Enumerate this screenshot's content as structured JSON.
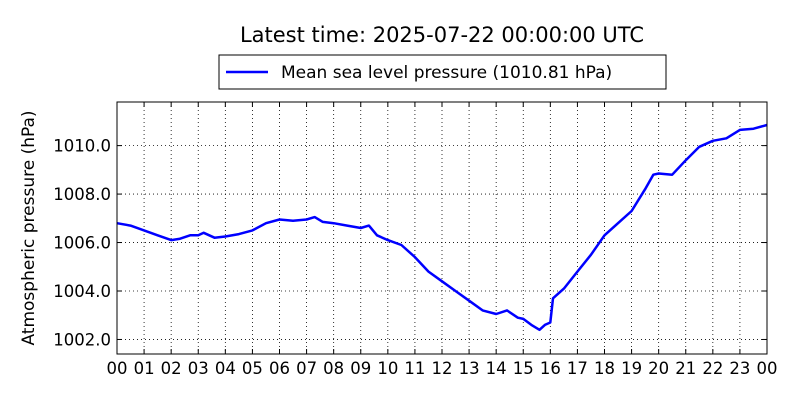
{
  "chart_data": {
    "type": "line",
    "title": "Latest time: 2025-07-22 00:00:00 UTC",
    "xlabel": "",
    "ylabel": "Atmospheric pressure (hPa)",
    "xlim": [
      0,
      24
    ],
    "ylim": [
      1001.4,
      1011.8
    ],
    "x_ticks": [
      0,
      1,
      2,
      3,
      4,
      5,
      6,
      7,
      8,
      9,
      10,
      11,
      12,
      13,
      14,
      15,
      16,
      17,
      18,
      19,
      20,
      21,
      22,
      23,
      24
    ],
    "x_tick_labels": [
      "00",
      "01",
      "02",
      "03",
      "04",
      "05",
      "06",
      "07",
      "08",
      "09",
      "10",
      "11",
      "12",
      "13",
      "14",
      "15",
      "16",
      "17",
      "18",
      "19",
      "20",
      "21",
      "22",
      "23",
      "00"
    ],
    "y_ticks": [
      1002,
      1004,
      1006,
      1008,
      1010
    ],
    "y_tick_labels": [
      "1002.0",
      "1004.0",
      "1006.0",
      "1008.0",
      "1010.0"
    ],
    "grid": true,
    "legend": {
      "position": "top-center",
      "entries": [
        "Mean sea level pressure (1010.81 hPa)"
      ]
    },
    "series": [
      {
        "name": "Mean sea level pressure (1010.81 hPa)",
        "color": "#0000ff",
        "x": [
          0,
          0.5,
          1,
          1.5,
          2,
          2.3,
          2.7,
          3,
          3.2,
          3.6,
          4,
          4.5,
          5,
          5.5,
          6,
          6.5,
          7,
          7.3,
          7.6,
          8,
          8.5,
          9,
          9.3,
          9.6,
          10,
          10.5,
          11,
          11.5,
          12,
          12.5,
          13,
          13.5,
          14,
          14.4,
          14.8,
          15,
          15.3,
          15.6,
          15.8,
          16,
          16.1,
          16.5,
          17,
          17.5,
          18,
          18.5,
          19,
          19.5,
          19.8,
          20,
          20.5,
          21,
          21.5,
          22,
          22.5,
          23,
          23.5,
          24
        ],
        "values": [
          1006.8,
          1006.7,
          1006.5,
          1006.3,
          1006.1,
          1006.15,
          1006.3,
          1006.3,
          1006.4,
          1006.2,
          1006.25,
          1006.35,
          1006.5,
          1006.8,
          1006.95,
          1006.9,
          1006.95,
          1007.05,
          1006.85,
          1006.8,
          1006.7,
          1006.6,
          1006.7,
          1006.3,
          1006.1,
          1005.9,
          1005.4,
          1004.8,
          1004.4,
          1004.0,
          1003.6,
          1003.2,
          1003.05,
          1003.2,
          1002.9,
          1002.85,
          1002.6,
          1002.4,
          1002.6,
          1002.7,
          1003.7,
          1004.1,
          1004.8,
          1005.5,
          1006.3,
          1006.8,
          1007.3,
          1008.2,
          1008.8,
          1008.85,
          1008.8,
          1009.4,
          1009.95,
          1010.2,
          1010.3,
          1010.65,
          1010.7,
          1010.85
        ]
      }
    ]
  }
}
